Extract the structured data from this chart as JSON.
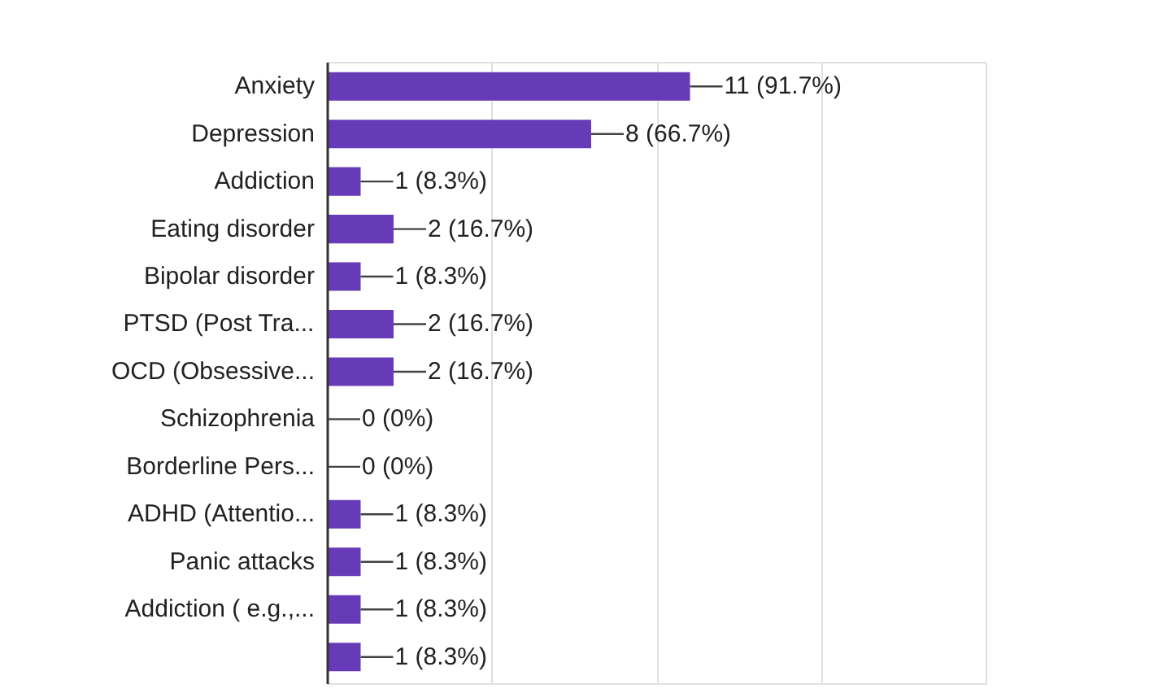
{
  "chart_data": {
    "type": "bar",
    "orientation": "horizontal",
    "categories": [
      "Anxiety",
      "Depression",
      "Addiction",
      "Eating disorder",
      "Bipolar disorder",
      "PTSD (Post Tra...",
      "OCD (Obsessive...",
      "Schizophrenia",
      "Borderline Pers...",
      "ADHD (Attentio...",
      "Panic attacks",
      "Addiction ( e.g.,...",
      null
    ],
    "values": [
      11,
      8,
      1,
      2,
      1,
      2,
      2,
      0,
      0,
      1,
      1,
      1,
      1
    ],
    "value_labels": [
      "11 (91.7%)",
      "8 (66.7%)",
      "1 (8.3%)",
      "2 (16.7%)",
      "1 (8.3%)",
      "2 (16.7%)",
      "2 (16.7%)",
      "0 (0%)",
      "0 (0%)",
      "1 (8.3%)",
      "1 (8.3%)",
      "1 (8.3%)",
      "1 (8.3%)"
    ],
    "color": "#673ab7",
    "xlim": [
      0,
      20
    ],
    "grid": "x",
    "tick_labels": "y"
  }
}
